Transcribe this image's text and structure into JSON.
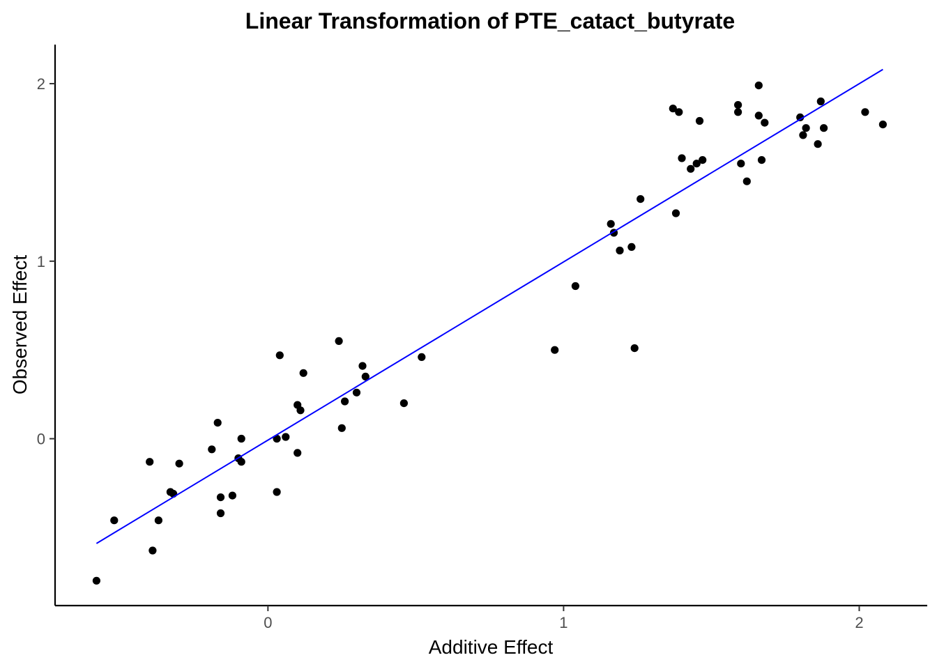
{
  "chart_data": {
    "type": "scatter",
    "title": "Linear Transformation of PTE_catact_butyrate",
    "xlabel": "Additive Effect",
    "ylabel": "Observed Effect",
    "xlim": [
      -0.72,
      2.23
    ],
    "ylim": [
      -0.94,
      2.22
    ],
    "xticks": [
      0,
      1,
      2
    ],
    "yticks": [
      0,
      1,
      2
    ],
    "grid": false,
    "colors": {
      "points": "#000000",
      "fit_line": "#0000ff",
      "axes": "#000000"
    },
    "fit_line": {
      "x": [
        -0.58,
        2.08
      ],
      "y": [
        -0.59,
        2.08
      ]
    },
    "points": {
      "x": [
        -0.58,
        -0.52,
        -0.39,
        -0.4,
        -0.37,
        -0.33,
        -0.32,
        -0.3,
        -0.19,
        -0.17,
        -0.16,
        -0.16,
        -0.12,
        -0.1,
        -0.09,
        -0.09,
        0.03,
        0.03,
        0.04,
        0.06,
        0.1,
        0.1,
        0.11,
        0.12,
        0.24,
        0.25,
        0.26,
        0.3,
        0.32,
        0.33,
        0.46,
        0.52,
        0.97,
        1.04,
        1.16,
        1.17,
        1.19,
        1.23,
        1.24,
        1.26,
        1.37,
        1.38,
        1.39,
        1.4,
        1.43,
        1.45,
        1.46,
        1.47,
        1.59,
        1.59,
        1.6,
        1.62,
        1.66,
        1.66,
        1.67,
        1.68,
        1.8,
        1.81,
        1.82,
        1.86,
        1.87,
        1.88,
        2.02,
        2.08
      ],
      "y": [
        -0.8,
        -0.46,
        -0.63,
        -0.13,
        -0.46,
        -0.3,
        -0.31,
        -0.14,
        -0.06,
        0.09,
        -0.33,
        -0.42,
        -0.32,
        -0.11,
        -0.13,
        0.0,
        0.0,
        -0.3,
        0.47,
        0.01,
        -0.08,
        0.19,
        0.16,
        0.37,
        0.55,
        0.06,
        0.21,
        0.26,
        0.41,
        0.35,
        0.2,
        0.46,
        0.5,
        0.86,
        1.21,
        1.16,
        1.06,
        1.08,
        0.51,
        1.35,
        1.86,
        1.27,
        1.84,
        1.58,
        1.52,
        1.55,
        1.79,
        1.57,
        1.88,
        1.84,
        1.55,
        1.45,
        1.99,
        1.82,
        1.57,
        1.78,
        1.81,
        1.71,
        1.75,
        1.66,
        1.9,
        1.75,
        1.84,
        1.77
      ]
    }
  }
}
